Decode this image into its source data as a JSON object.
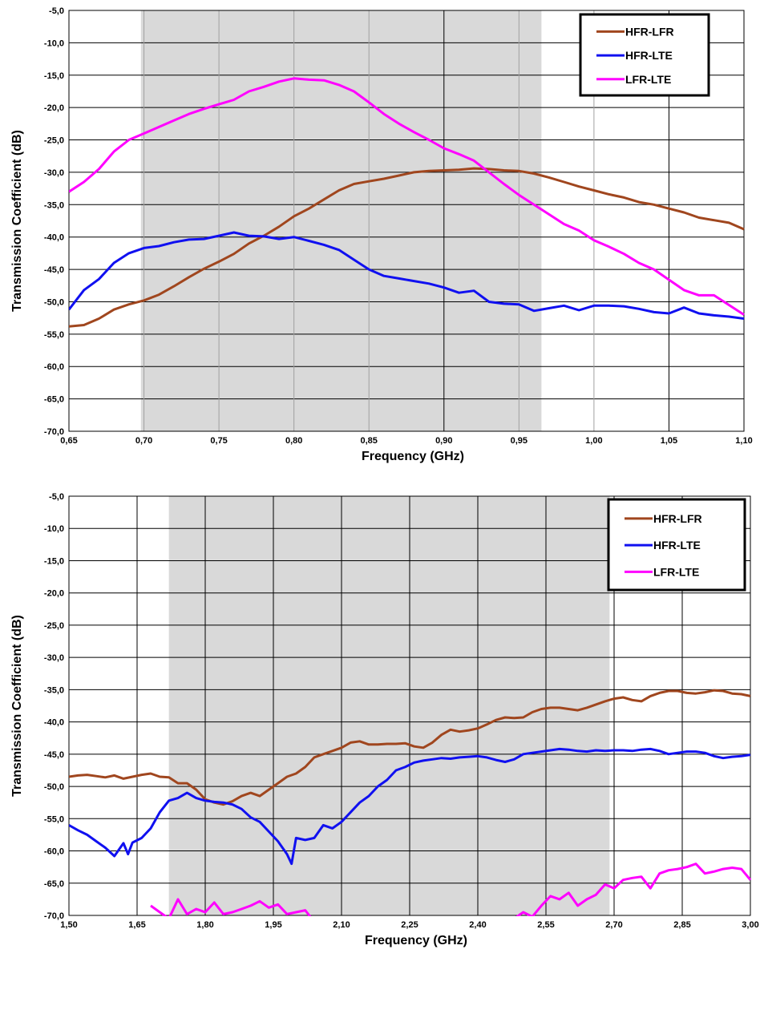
{
  "chart_data": [
    {
      "type": "line",
      "xlabel": "Frequency (GHz)",
      "ylabel": "Transmission Coefficient (dB)",
      "xlim": [
        0.65,
        1.1
      ],
      "ylim": [
        -70,
        -5
      ],
      "x_ticks": [
        "0,65",
        "0,70",
        "0,75",
        "0,80",
        "0,85",
        "0,90",
        "0,95",
        "1,00",
        "1,05",
        "1,10"
      ],
      "x_tick_values": [
        0.65,
        0.7,
        0.75,
        0.8,
        0.85,
        0.9,
        0.95,
        1.0,
        1.05,
        1.1
      ],
      "y_ticks": [
        "-5,0",
        "-10,0",
        "-15,0",
        "-20,0",
        "-25,0",
        "-30,0",
        "-35,0",
        "-40,0",
        "-45,0",
        "-50,0",
        "-55,0",
        "-60,0",
        "-65,0",
        "-70,0"
      ],
      "y_tick_values": [
        -5,
        -10,
        -15,
        -20,
        -25,
        -30,
        -35,
        -40,
        -45,
        -50,
        -55,
        -60,
        -65,
        -70
      ],
      "shaded_band": [
        0.698,
        0.965
      ],
      "major_vgrid": [
        0.9,
        1.05
      ],
      "legend_position": "top-right",
      "series": [
        {
          "name": "HFR-LFR",
          "color": "#A0461E",
          "x": [
            0.65,
            0.66,
            0.67,
            0.68,
            0.69,
            0.7,
            0.71,
            0.72,
            0.73,
            0.74,
            0.75,
            0.76,
            0.77,
            0.78,
            0.79,
            0.8,
            0.81,
            0.82,
            0.83,
            0.84,
            0.85,
            0.86,
            0.87,
            0.88,
            0.89,
            0.9,
            0.91,
            0.92,
            0.93,
            0.94,
            0.95,
            0.96,
            0.97,
            0.98,
            0.99,
            1.0,
            1.01,
            1.02,
            1.03,
            1.04,
            1.05,
            1.06,
            1.07,
            1.08,
            1.09,
            1.1
          ],
          "y": [
            -53.8,
            -53.6,
            -52.6,
            -51.2,
            -50.4,
            -49.8,
            -48.9,
            -47.6,
            -46.2,
            -44.9,
            -43.8,
            -42.6,
            -41.0,
            -39.8,
            -38.4,
            -36.8,
            -35.6,
            -34.2,
            -32.8,
            -31.8,
            -31.4,
            -31.0,
            -30.5,
            -30.0,
            -29.8,
            -29.7,
            -29.6,
            -29.4,
            -29.5,
            -29.7,
            -29.8,
            -30.2,
            -30.8,
            -31.5,
            -32.2,
            -32.8,
            -33.4,
            -33.9,
            -34.6,
            -35.0,
            -35.6,
            -36.2,
            -37.0,
            -37.4,
            -37.8,
            -38.8
          ]
        },
        {
          "name": "HFR-LTE",
          "color": "#1010F0",
          "x": [
            0.65,
            0.66,
            0.67,
            0.68,
            0.69,
            0.7,
            0.71,
            0.72,
            0.73,
            0.74,
            0.75,
            0.76,
            0.77,
            0.78,
            0.79,
            0.8,
            0.81,
            0.82,
            0.83,
            0.84,
            0.85,
            0.86,
            0.87,
            0.88,
            0.89,
            0.9,
            0.91,
            0.92,
            0.93,
            0.94,
            0.95,
            0.96,
            0.97,
            0.98,
            0.99,
            1.0,
            1.01,
            1.02,
            1.03,
            1.04,
            1.05,
            1.06,
            1.07,
            1.08,
            1.09,
            1.1
          ],
          "y": [
            -51.2,
            -48.2,
            -46.5,
            -44.0,
            -42.5,
            -41.7,
            -41.4,
            -40.8,
            -40.4,
            -40.3,
            -39.8,
            -39.3,
            -39.8,
            -39.9,
            -40.3,
            -40.0,
            -40.6,
            -41.2,
            -42.0,
            -43.5,
            -45.0,
            -46.0,
            -46.4,
            -46.8,
            -47.2,
            -47.8,
            -48.6,
            -48.3,
            -50.0,
            -50.3,
            -50.4,
            -51.4,
            -51.0,
            -50.6,
            -51.3,
            -50.6,
            -50.6,
            -50.7,
            -51.1,
            -51.6,
            -51.8,
            -50.9,
            -51.8,
            -52.1,
            -52.3,
            -52.6
          ]
        },
        {
          "name": "LFR-LTE",
          "color": "#FF00FF",
          "x": [
            0.65,
            0.66,
            0.67,
            0.68,
            0.69,
            0.7,
            0.71,
            0.72,
            0.73,
            0.74,
            0.75,
            0.76,
            0.77,
            0.78,
            0.79,
            0.8,
            0.81,
            0.82,
            0.83,
            0.84,
            0.85,
            0.86,
            0.87,
            0.88,
            0.89,
            0.9,
            0.91,
            0.92,
            0.93,
            0.94,
            0.95,
            0.96,
            0.97,
            0.98,
            0.99,
            1.0,
            1.01,
            1.02,
            1.03,
            1.04,
            1.05,
            1.06,
            1.07,
            1.08,
            1.09,
            1.1
          ],
          "y": [
            -33.0,
            -31.5,
            -29.5,
            -26.8,
            -25.0,
            -24.0,
            -23.0,
            -22.0,
            -21.0,
            -20.2,
            -19.5,
            -18.8,
            -17.5,
            -16.8,
            -16.0,
            -15.5,
            -15.7,
            -15.8,
            -16.5,
            -17.5,
            -19.2,
            -21.0,
            -22.5,
            -23.8,
            -25.0,
            -26.3,
            -27.2,
            -28.2,
            -30.0,
            -31.8,
            -33.5,
            -35.0,
            -36.5,
            -38.0,
            -39.0,
            -40.5,
            -41.5,
            -42.6,
            -44.0,
            -45.0,
            -46.6,
            -48.2,
            -49.0,
            -49.0,
            -50.5,
            -52.0
          ]
        }
      ]
    },
    {
      "type": "line",
      "xlabel": "Frequency (GHz)",
      "ylabel": "Transmission Coefficient (dB)",
      "xlim": [
        1.5,
        3.0
      ],
      "ylim": [
        -70,
        -5
      ],
      "x_ticks": [
        "1,50",
        "1,65",
        "1,80",
        "1,95",
        "2,10",
        "2,25",
        "2,40",
        "2,55",
        "2,70",
        "2,85",
        "3,00"
      ],
      "x_tick_values": [
        1.5,
        1.65,
        1.8,
        1.95,
        2.1,
        2.25,
        2.4,
        2.55,
        2.7,
        2.85,
        3.0
      ],
      "y_ticks": [
        "-5,0",
        "-10,0",
        "-15,0",
        "-20,0",
        "-25,0",
        "-30,0",
        "-35,0",
        "-40,0",
        "-45,0",
        "-50,0",
        "-55,0",
        "-60,0",
        "-65,0",
        "-70,0"
      ],
      "y_tick_values": [
        -5,
        -10,
        -15,
        -20,
        -25,
        -30,
        -35,
        -40,
        -45,
        -50,
        -55,
        -60,
        -65,
        -70
      ],
      "shaded_band": [
        1.72,
        2.69
      ],
      "legend_position": "top-right",
      "series": [
        {
          "name": "HFR-LFR",
          "color": "#A0461E",
          "x": [
            1.5,
            1.52,
            1.54,
            1.56,
            1.58,
            1.6,
            1.62,
            1.64,
            1.66,
            1.68,
            1.7,
            1.72,
            1.74,
            1.76,
            1.78,
            1.8,
            1.82,
            1.84,
            1.86,
            1.88,
            1.9,
            1.92,
            1.94,
            1.96,
            1.98,
            2.0,
            2.02,
            2.04,
            2.06,
            2.08,
            2.1,
            2.12,
            2.14,
            2.16,
            2.18,
            2.2,
            2.22,
            2.24,
            2.26,
            2.28,
            2.3,
            2.32,
            2.34,
            2.36,
            2.38,
            2.4,
            2.42,
            2.44,
            2.46,
            2.48,
            2.5,
            2.52,
            2.54,
            2.56,
            2.58,
            2.6,
            2.62,
            2.64,
            2.66,
            2.68,
            2.7,
            2.72,
            2.74,
            2.76,
            2.78,
            2.8,
            2.82,
            2.84,
            2.86,
            2.88,
            2.9,
            2.92,
            2.94,
            2.96,
            2.98,
            3.0
          ],
          "y": [
            -48.5,
            -48.3,
            -48.2,
            -48.4,
            -48.6,
            -48.3,
            -48.8,
            -48.5,
            -48.2,
            -48.0,
            -48.5,
            -48.6,
            -49.5,
            -49.5,
            -50.5,
            -52.0,
            -52.5,
            -52.8,
            -52.3,
            -51.5,
            -51.0,
            -51.5,
            -50.5,
            -49.5,
            -48.5,
            -48.0,
            -47.0,
            -45.5,
            -45.0,
            -44.5,
            -44.0,
            -43.2,
            -43.0,
            -43.5,
            -43.5,
            -43.4,
            -43.4,
            -43.3,
            -43.8,
            -44.0,
            -43.2,
            -42.0,
            -41.2,
            -41.5,
            -41.3,
            -41.0,
            -40.4,
            -39.7,
            -39.3,
            -39.4,
            -39.3,
            -38.5,
            -38.0,
            -37.8,
            -37.8,
            -38.0,
            -38.2,
            -37.8,
            -37.3,
            -36.8,
            -36.4,
            -36.2,
            -36.6,
            -36.8,
            -36.0,
            -35.5,
            -35.2,
            -35.2,
            -35.5,
            -35.6,
            -35.4,
            -35.1,
            -35.2,
            -35.6,
            -35.7,
            -36.0
          ]
        },
        {
          "name": "HFR-LTE",
          "color": "#1010F0",
          "x": [
            1.5,
            1.52,
            1.54,
            1.56,
            1.58,
            1.6,
            1.62,
            1.63,
            1.64,
            1.66,
            1.68,
            1.7,
            1.72,
            1.74,
            1.76,
            1.78,
            1.8,
            1.82,
            1.84,
            1.86,
            1.88,
            1.9,
            1.92,
            1.94,
            1.96,
            1.98,
            1.99,
            2.0,
            2.02,
            2.04,
            2.06,
            2.08,
            2.1,
            2.12,
            2.14,
            2.16,
            2.18,
            2.2,
            2.22,
            2.24,
            2.26,
            2.28,
            2.3,
            2.32,
            2.34,
            2.36,
            2.38,
            2.4,
            2.42,
            2.44,
            2.46,
            2.48,
            2.5,
            2.52,
            2.54,
            2.56,
            2.58,
            2.6,
            2.62,
            2.64,
            2.66,
            2.68,
            2.7,
            2.72,
            2.74,
            2.76,
            2.78,
            2.8,
            2.82,
            2.84,
            2.86,
            2.88,
            2.9,
            2.92,
            2.94,
            2.96,
            2.98,
            3.0
          ],
          "y": [
            -56.0,
            -56.8,
            -57.5,
            -58.5,
            -59.5,
            -60.8,
            -58.8,
            -60.5,
            -58.7,
            -58.0,
            -56.5,
            -54.0,
            -52.2,
            -51.8,
            -51.0,
            -51.8,
            -52.2,
            -52.4,
            -52.5,
            -52.8,
            -53.5,
            -54.8,
            -55.5,
            -57.0,
            -58.5,
            -60.5,
            -62.0,
            -58.0,
            -58.3,
            -58.0,
            -56.0,
            -56.5,
            -55.5,
            -54.0,
            -52.5,
            -51.5,
            -50.0,
            -49.0,
            -47.5,
            -47.0,
            -46.3,
            -46.0,
            -45.8,
            -45.6,
            -45.7,
            -45.5,
            -45.4,
            -45.3,
            -45.5,
            -45.9,
            -46.2,
            -45.8,
            -45.0,
            -44.8,
            -44.6,
            -44.4,
            -44.2,
            -44.3,
            -44.5,
            -44.6,
            -44.4,
            -44.5,
            -44.4,
            -44.4,
            -44.5,
            -44.3,
            -44.2,
            -44.5,
            -45.0,
            -44.8,
            -44.6,
            -44.6,
            -44.8,
            -45.3,
            -45.6,
            -45.4,
            -45.3,
            -45.1
          ]
        },
        {
          "name": "LFR-LTE",
          "color": "#FF00FF",
          "x": [
            1.68,
            1.7,
            1.72,
            1.74,
            1.76,
            1.78,
            1.8,
            1.82,
            1.84,
            1.86,
            1.88,
            1.9,
            1.92,
            1.94,
            1.96,
            1.98,
            2.0,
            2.02,
            2.04,
            2.06,
            2.08,
            2.1,
            2.12,
            2.14,
            2.16,
            2.18,
            2.2,
            2.22,
            2.24,
            2.26,
            2.28,
            2.3,
            2.32,
            2.34,
            2.36,
            2.38,
            2.4,
            2.42,
            2.44,
            2.46,
            2.48,
            2.5,
            2.52,
            2.54,
            2.56,
            2.58,
            2.6,
            2.62,
            2.64,
            2.66,
            2.68,
            2.7,
            2.72,
            2.74,
            2.76,
            2.78,
            2.8,
            2.82,
            2.84,
            2.86,
            2.88,
            2.9,
            2.92,
            2.94,
            2.96,
            2.98,
            3.0
          ],
          "y": [
            -68.5,
            -69.5,
            -70.5,
            -67.5,
            -69.8,
            -69.0,
            -69.5,
            -68.0,
            -69.8,
            -69.5,
            -69.0,
            -68.5,
            -67.8,
            -68.8,
            -68.3,
            -69.8,
            -69.5,
            -69.2,
            -71.0,
            -71.5,
            -71.5,
            -71.0,
            -71.5,
            -71.8,
            -71.5,
            -71.5,
            -71.2,
            -71.8,
            -71.5,
            -71.0,
            -71.5,
            -71.2,
            -71.8,
            -71.5,
            -71.0,
            -71.5,
            -71.2,
            -71.8,
            -71.5,
            -71.0,
            -70.5,
            -69.5,
            -70.2,
            -68.5,
            -67.0,
            -67.5,
            -66.5,
            -68.5,
            -67.5,
            -66.8,
            -65.2,
            -65.8,
            -64.5,
            -64.2,
            -64.0,
            -65.8,
            -63.5,
            -63.0,
            -62.8,
            -62.5,
            -62.0,
            -63.5,
            -63.2,
            -62.8,
            -62.6,
            -62.8,
            -64.5
          ]
        }
      ]
    }
  ]
}
